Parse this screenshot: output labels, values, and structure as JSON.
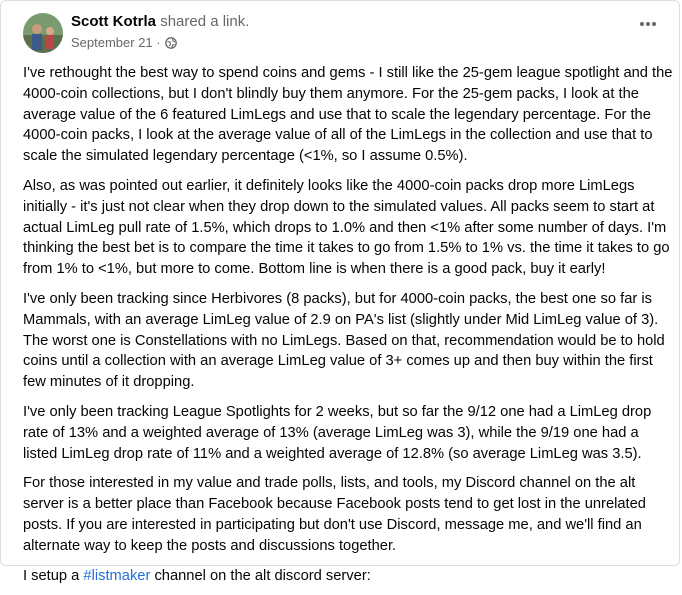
{
  "post": {
    "author": "Scott Kotrla",
    "action": "shared a link.",
    "date": "September 21 ·",
    "paragraphs": [
      "I've rethought the best way to spend coins and gems - I still like the 25-gem league spotlight and the 4000-coin collections, but I don't blindly buy them anymore.  For the 25-gem packs, I look at the average value of the 6 featured LimLegs and use that to scale the legendary percentage.  For the 4000-coin packs, I look at the average value of all of the LimLegs in the collection and use that to scale the simulated legendary percentage (<1%, so I assume 0.5%).",
      "Also, as was pointed out earlier, it definitely looks like the 4000-coin packs drop more LimLegs initially - it's just not clear when they drop down to the simulated values.  All packs seem to start at actual LimLeg pull rate of 1.5%, which drops to 1.0% and then <1% after some number of days.  I'm thinking the best bet is to compare the time it takes to go from 1.5% to 1% vs. the time it takes to go from 1% to <1%, but more to come.  Bottom line is when there is a good pack, buy it early!",
      "I've only been tracking since Herbivores (8 packs), but for 4000-coin packs, the best one so far is Mammals, with an average LimLeg value of 2.9 on PA's list (slightly under Mid LimLeg value of 3).  The worst one is Constellations with no LimLegs.  Based on that, recommendation would be to hold coins until a collection with an average LimLeg value of 3+ comes up and then buy within the first few minutes of it dropping.",
      "I've only been tracking League Spotlights for 2 weeks, but so far the 9/12 one had a LimLeg drop rate of 13% and a weighted average of 13% (average LimLeg was 3), while the 9/19 one had a listed LimLeg drop rate of 11% and a weighted average of 12.8% (so average LimLeg was 3.5).",
      "For those interested in my value and trade polls, lists, and tools, my Discord channel on the alt server is a better place than Facebook because Facebook posts tend to get lost in the unrelated posts.  If you are interested in participating but don't use Discord, message me, and we'll find an alternate way to keep the posts and discussions together."
    ],
    "last_paragraph": {
      "before": "I setup a ",
      "hashtag": "#listmaker",
      "after": " channel on the alt discord server:"
    }
  }
}
